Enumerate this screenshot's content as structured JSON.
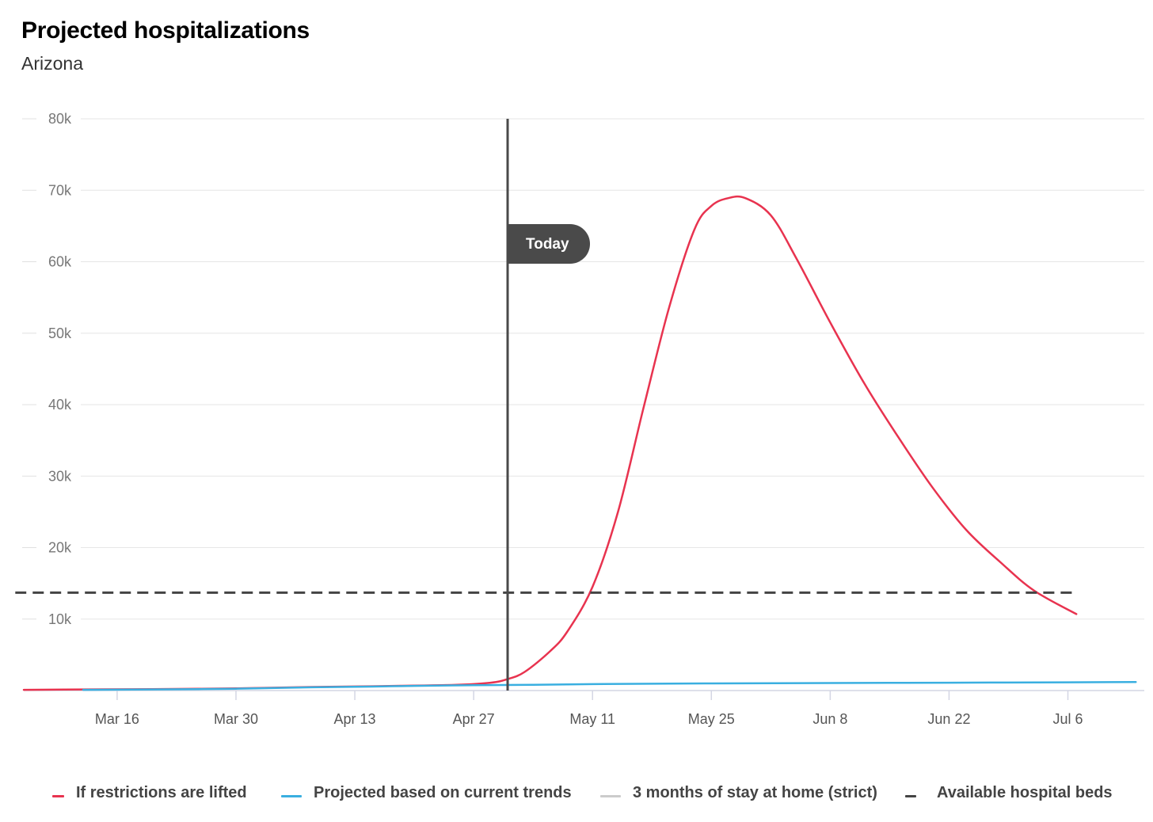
{
  "header": {
    "title": "Projected hospitalizations",
    "subtitle": "Arizona"
  },
  "today_label": "Today",
  "colors": {
    "lifted": "#e8334f",
    "current": "#3aafe0",
    "strict": "#cccccc",
    "beds": "#444444",
    "today": "#4a4a4a"
  },
  "legend": [
    {
      "label": "If restrictions are lifted",
      "color": "#e8334f",
      "style": "solid"
    },
    {
      "label": "Projected based on current trends",
      "color": "#3aafe0",
      "style": "solid"
    },
    {
      "label": "3 months of stay at home (strict)",
      "color": "#cccccc",
      "style": "solid"
    },
    {
      "label": "Available hospital beds",
      "color": "#444444",
      "style": "dashed"
    }
  ],
  "chart_data": {
    "type": "line",
    "title": "Projected hospitalizations",
    "subtitle": "Arizona",
    "xlabel": "",
    "ylabel": "",
    "ylim": [
      0,
      80000
    ],
    "y_ticks": [
      10000,
      20000,
      30000,
      40000,
      50000,
      60000,
      70000,
      80000
    ],
    "y_tick_labels": [
      "10k",
      "20k",
      "30k",
      "40k",
      "50k",
      "60k",
      "70k",
      "80k"
    ],
    "x_tick_labels": [
      "Mar 16",
      "Mar 30",
      "Apr 13",
      "Apr 27",
      "May 11",
      "May 25",
      "Jun 8",
      "Jun 22",
      "Jul 6"
    ],
    "x_tick_dates": [
      "2020-03-16",
      "2020-03-30",
      "2020-04-13",
      "2020-04-27",
      "2020-05-11",
      "2020-05-25",
      "2020-06-08",
      "2020-06-22",
      "2020-07-06"
    ],
    "xlim": [
      "2020-03-05",
      "2020-07-15"
    ],
    "today": "2020-05-01",
    "grid": true,
    "legend_position": "bottom",
    "series": [
      {
        "name": "If restrictions are lifted",
        "color": "#e8334f",
        "points": [
          [
            "2020-03-05",
            100
          ],
          [
            "2020-03-12",
            150
          ],
          [
            "2020-03-20",
            200
          ],
          [
            "2020-03-30",
            300
          ],
          [
            "2020-04-08",
            500
          ],
          [
            "2020-04-15",
            600
          ],
          [
            "2020-04-20",
            700
          ],
          [
            "2020-04-25",
            800
          ],
          [
            "2020-04-29",
            1100
          ],
          [
            "2020-05-01",
            1600
          ],
          [
            "2020-05-03",
            2600
          ],
          [
            "2020-05-06",
            5500
          ],
          [
            "2020-05-08",
            8200
          ],
          [
            "2020-05-11",
            14500
          ],
          [
            "2020-05-14",
            25000
          ],
          [
            "2020-05-17",
            39500
          ],
          [
            "2020-05-20",
            53500
          ],
          [
            "2020-05-23",
            64500
          ],
          [
            "2020-05-25",
            67800
          ],
          [
            "2020-05-27",
            68900
          ],
          [
            "2020-05-29",
            68900
          ],
          [
            "2020-06-01",
            66500
          ],
          [
            "2020-06-04",
            60500
          ],
          [
            "2020-06-08",
            51500
          ],
          [
            "2020-06-12",
            43000
          ],
          [
            "2020-06-16",
            35500
          ],
          [
            "2020-06-20",
            28500
          ],
          [
            "2020-06-24",
            22500
          ],
          [
            "2020-06-28",
            18000
          ],
          [
            "2020-07-02",
            14000
          ],
          [
            "2020-07-07",
            10700
          ]
        ]
      },
      {
        "name": "Projected based on current trends",
        "color": "#3aafe0",
        "points": [
          [
            "2020-03-12",
            100
          ],
          [
            "2020-03-20",
            150
          ],
          [
            "2020-03-30",
            250
          ],
          [
            "2020-04-08",
            450
          ],
          [
            "2020-04-15",
            550
          ],
          [
            "2020-04-20",
            650
          ],
          [
            "2020-04-27",
            750
          ],
          [
            "2020-05-04",
            800
          ],
          [
            "2020-05-11",
            900
          ],
          [
            "2020-05-25",
            1000
          ],
          [
            "2020-06-08",
            1050
          ],
          [
            "2020-06-22",
            1100
          ],
          [
            "2020-07-06",
            1150
          ],
          [
            "2020-07-14",
            1200
          ]
        ]
      },
      {
        "name": "Available hospital beds",
        "color": "#444444",
        "style": "dashed",
        "points": [
          [
            "2020-03-04",
            13700
          ],
          [
            "2020-07-07",
            13700
          ]
        ]
      }
    ]
  }
}
